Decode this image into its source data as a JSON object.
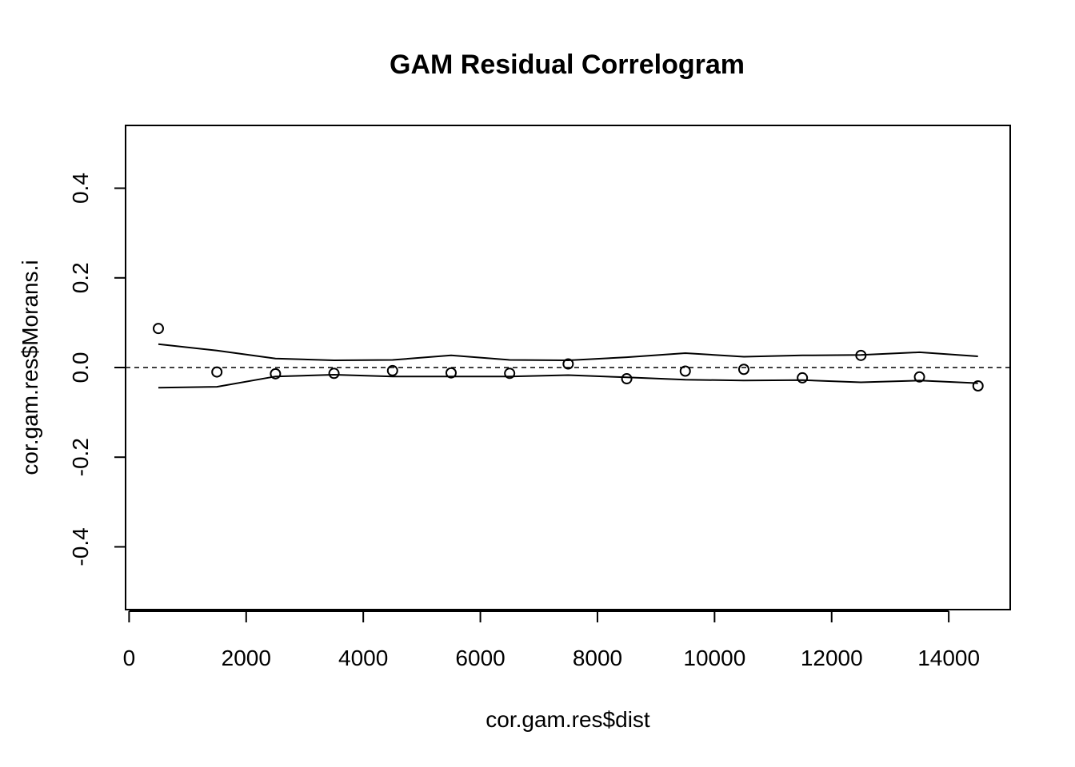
{
  "chart_data": {
    "type": "scatter",
    "title": "GAM Residual Correlogram",
    "xlabel": "cor.gam.res$dist",
    "ylabel": "cor.gam.res$Morans.i",
    "xlim": [
      -60,
      15050
    ],
    "ylim": [
      -0.54,
      0.54
    ],
    "x_ticks": [
      0,
      2000,
      4000,
      6000,
      8000,
      10000,
      12000,
      14000
    ],
    "x_tick_labels": [
      "0",
      "2000",
      "4000",
      "6000",
      "8000",
      "10000",
      "12000",
      "14000"
    ],
    "y_ticks": [
      -0.4,
      -0.2,
      0.0,
      0.2,
      0.4
    ],
    "y_tick_labels": [
      "-0.4",
      "-0.2",
      "0.0",
      "0.2",
      "0.4"
    ],
    "reference_line": 0,
    "grid": false,
    "series": [
      {
        "type": "points",
        "x": [
          500,
          1500,
          2500,
          3500,
          4500,
          5500,
          6500,
          7500,
          8500,
          9500,
          10500,
          11500,
          12500,
          13500,
          14500
        ],
        "y": [
          0.087,
          -0.01,
          -0.014,
          -0.013,
          -0.007,
          -0.012,
          -0.013,
          0.008,
          -0.025,
          -0.008,
          -0.004,
          -0.023,
          0.027,
          -0.021,
          -0.041
        ]
      },
      {
        "type": "line",
        "x": [
          500,
          1500,
          2500,
          3500,
          4500,
          5500,
          6500,
          7500,
          8500,
          9500,
          10500,
          11500,
          12500,
          13500,
          14500
        ],
        "y": [
          0.052,
          0.038,
          0.02,
          0.016,
          0.017,
          0.027,
          0.017,
          0.016,
          0.023,
          0.032,
          0.024,
          0.027,
          0.028,
          0.034,
          0.025
        ]
      },
      {
        "type": "line",
        "x": [
          500,
          1500,
          2500,
          3500,
          4500,
          5500,
          6500,
          7500,
          8500,
          9500,
          10500,
          11500,
          12500,
          13500,
          14500
        ],
        "y": [
          -0.045,
          -0.043,
          -0.02,
          -0.016,
          -0.02,
          -0.02,
          -0.02,
          -0.017,
          -0.022,
          -0.027,
          -0.029,
          -0.028,
          -0.033,
          -0.029,
          -0.035
        ]
      }
    ]
  }
}
